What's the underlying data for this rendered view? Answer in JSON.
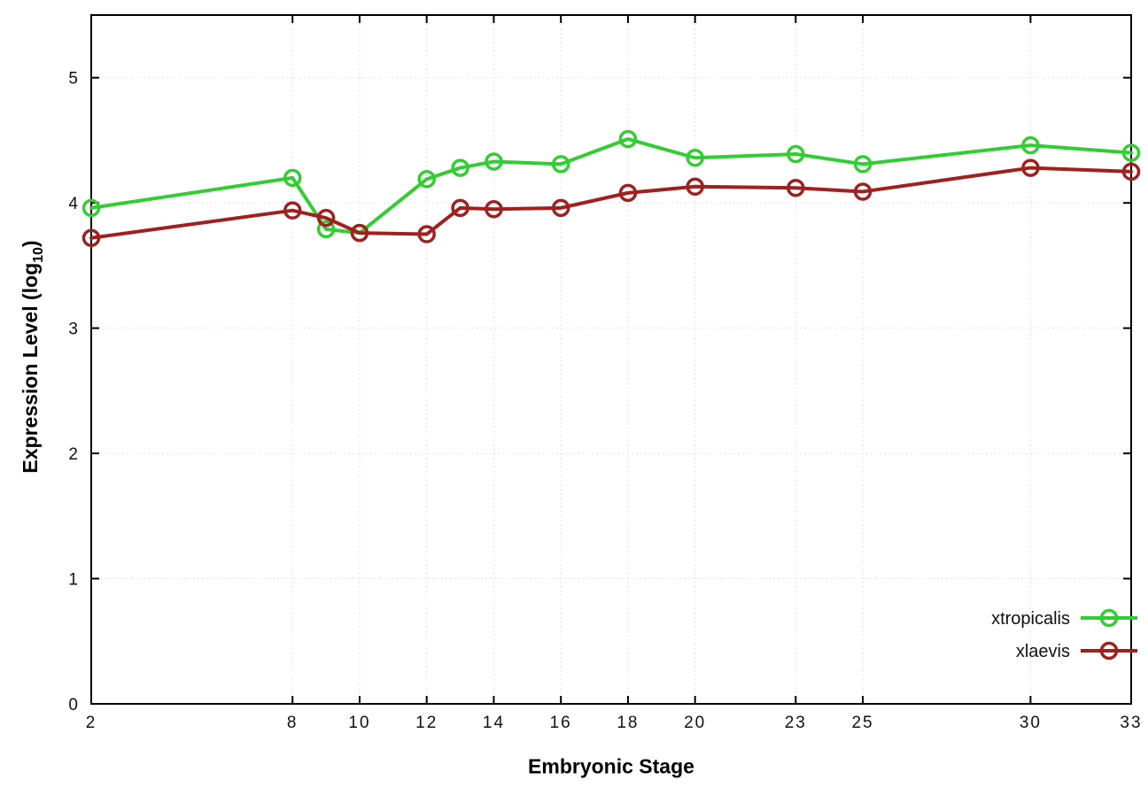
{
  "chart_data": {
    "type": "line",
    "title": "",
    "xlabel": "Embryonic Stage",
    "ylabel": "Expression Level (log10)",
    "ylabel_parts": {
      "pre": "Expression Level (log",
      "sub": "10",
      "post": ")"
    },
    "x": [
      2,
      8,
      9,
      10,
      12,
      13,
      14,
      16,
      18,
      20,
      23,
      25,
      30,
      33
    ],
    "series": [
      {
        "name": "xtropicalis",
        "color": "#32cd32",
        "values": [
          3.96,
          4.2,
          3.79,
          3.76,
          4.19,
          4.28,
          4.33,
          4.31,
          4.51,
          4.36,
          4.39,
          4.31,
          4.46,
          4.4
        ]
      },
      {
        "name": "xlaevis",
        "color": "#a02020",
        "values": [
          3.72,
          3.94,
          3.88,
          3.76,
          3.75,
          3.96,
          3.95,
          3.96,
          4.08,
          4.13,
          4.12,
          4.09,
          4.28,
          4.25
        ]
      }
    ],
    "xticks": [
      2,
      8,
      10,
      12,
      14,
      16,
      18,
      20,
      23,
      25,
      30,
      33
    ],
    "yticks": [
      0,
      1,
      2,
      3,
      4,
      5
    ],
    "xlim": [
      2,
      33
    ],
    "ylim": [
      0,
      5.5
    ],
    "grid": true,
    "grid_color": "#d8d8d8",
    "border_color": "#000000",
    "legend_position": "bottom-right",
    "legend_entries": [
      "xtropicalis",
      "xlaevis"
    ],
    "marker": "open-circle"
  }
}
